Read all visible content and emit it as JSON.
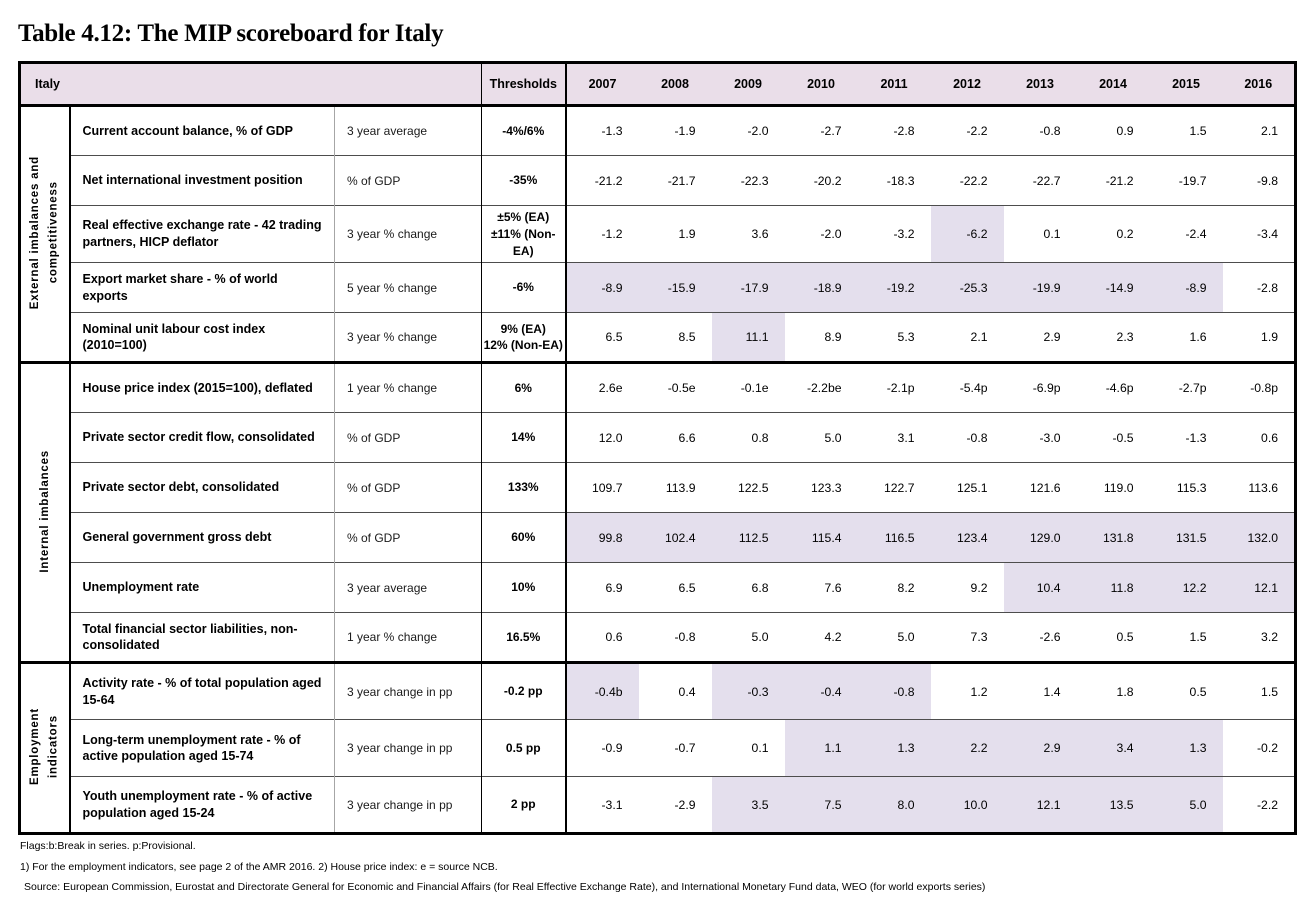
{
  "title": "Table 4.12: The MIP scoreboard for Italy",
  "colors": {
    "header_bg": "#EADEE9",
    "highlight_bg": "#E4DFED",
    "border": "#000000"
  },
  "header": {
    "country": "Italy",
    "thresholds_label": "Thresholds",
    "years": [
      "2007",
      "2008",
      "2009",
      "2010",
      "2011",
      "2012",
      "2013",
      "2014",
      "2015",
      "2016"
    ]
  },
  "groups": [
    {
      "label": "External imbalances and\ncompetitiveness",
      "rows": [
        {
          "indicator": "Current account balance, % of GDP",
          "unit": "3 year average",
          "threshold": "-4%/6%",
          "values": [
            "-1.3",
            "-1.9",
            "-2.0",
            "-2.7",
            "-2.8",
            "-2.2",
            "-0.8",
            "0.9",
            "1.5",
            "2.1"
          ],
          "highlighted_year_indices": []
        },
        {
          "indicator": "Net international investment position",
          "unit": "% of GDP",
          "threshold": "-35%",
          "values": [
            "-21.2",
            "-21.7",
            "-22.3",
            "-20.2",
            "-18.3",
            "-22.2",
            "-22.7",
            "-21.2",
            "-19.7",
            "-9.8"
          ],
          "highlighted_year_indices": []
        },
        {
          "indicator": "Real effective exchange rate - 42 trading partners, HICP deflator",
          "unit": "3 year % change",
          "threshold": "±5% (EA)\n±11% (Non-EA)",
          "values": [
            "-1.2",
            "1.9",
            "3.6",
            "-2.0",
            "-3.2",
            "-6.2",
            "0.1",
            "0.2",
            "-2.4",
            "-3.4"
          ],
          "highlighted_year_indices": [
            5
          ]
        },
        {
          "indicator": "Export market share - % of world exports",
          "unit": "5 year % change",
          "threshold": "-6%",
          "values": [
            "-8.9",
            "-15.9",
            "-17.9",
            "-18.9",
            "-19.2",
            "-25.3",
            "-19.9",
            "-14.9",
            "-8.9",
            "-2.8"
          ],
          "highlighted_year_indices": [
            0,
            1,
            2,
            3,
            4,
            5,
            6,
            7,
            8
          ]
        },
        {
          "indicator": "Nominal unit labour cost index (2010=100)",
          "unit": "3 year % change",
          "threshold": "9% (EA)\n12% (Non-EA)",
          "values": [
            "6.5",
            "8.5",
            "11.1",
            "8.9",
            "5.3",
            "2.1",
            "2.9",
            "2.3",
            "1.6",
            "1.9"
          ],
          "highlighted_year_indices": [
            2
          ]
        }
      ]
    },
    {
      "label": "Internal imbalances",
      "rows": [
        {
          "indicator": "House price index (2015=100), deflated",
          "unit": "1 year % change",
          "threshold": "6%",
          "values": [
            "2.6e",
            "-0.5e",
            "-0.1e",
            "-2.2be",
            "-2.1p",
            "-5.4p",
            "-6.9p",
            "-4.6p",
            "-2.7p",
            "-0.8p"
          ],
          "highlighted_year_indices": []
        },
        {
          "indicator": "Private sector credit flow, consolidated",
          "unit": "% of GDP",
          "threshold": "14%",
          "values": [
            "12.0",
            "6.6",
            "0.8",
            "5.0",
            "3.1",
            "-0.8",
            "-3.0",
            "-0.5",
            "-1.3",
            "0.6"
          ],
          "highlighted_year_indices": []
        },
        {
          "indicator": "Private sector debt, consolidated",
          "unit": "% of GDP",
          "threshold": "133%",
          "values": [
            "109.7",
            "113.9",
            "122.5",
            "123.3",
            "122.7",
            "125.1",
            "121.6",
            "119.0",
            "115.3",
            "113.6"
          ],
          "highlighted_year_indices": []
        },
        {
          "indicator": "General government gross debt",
          "unit": "% of GDP",
          "threshold": "60%",
          "values": [
            "99.8",
            "102.4",
            "112.5",
            "115.4",
            "116.5",
            "123.4",
            "129.0",
            "131.8",
            "131.5",
            "132.0"
          ],
          "highlighted_year_indices": [
            0,
            1,
            2,
            3,
            4,
            5,
            6,
            7,
            8,
            9
          ]
        },
        {
          "indicator": "Unemployment rate",
          "unit": "3 year average",
          "threshold": "10%",
          "values": [
            "6.9",
            "6.5",
            "6.8",
            "7.6",
            "8.2",
            "9.2",
            "10.4",
            "11.8",
            "12.2",
            "12.1"
          ],
          "highlighted_year_indices": [
            6,
            7,
            8,
            9
          ]
        },
        {
          "indicator": "Total financial sector liabilities, non-consolidated",
          "unit": "1 year % change",
          "threshold": "16.5%",
          "values": [
            "0.6",
            "-0.8",
            "5.0",
            "4.2",
            "5.0",
            "7.3",
            "-2.6",
            "0.5",
            "1.5",
            "3.2"
          ],
          "highlighted_year_indices": []
        }
      ]
    },
    {
      "label": "Employment\nindicators",
      "rows": [
        {
          "indicator": "Activity rate - % of total population aged 15-64",
          "unit": "3 year change in pp",
          "threshold": "-0.2 pp",
          "values": [
            "-0.4b",
            "0.4",
            "-0.3",
            "-0.4",
            "-0.8",
            "1.2",
            "1.4",
            "1.8",
            "0.5",
            "1.5"
          ],
          "highlighted_year_indices": [
            0,
            2,
            3,
            4
          ]
        },
        {
          "indicator": "Long-term unemployment rate - % of active population aged 15-74",
          "unit": "3 year change in pp",
          "threshold": "0.5 pp",
          "values": [
            "-0.9",
            "-0.7",
            "0.1",
            "1.1",
            "1.3",
            "2.2",
            "2.9",
            "3.4",
            "1.3",
            "-0.2"
          ],
          "highlighted_year_indices": [
            3,
            4,
            5,
            6,
            7,
            8
          ]
        },
        {
          "indicator": "Youth unemployment rate - % of active population aged 15-24",
          "unit": "3 year change in pp",
          "threshold": "2 pp",
          "values": [
            "-3.1",
            "-2.9",
            "3.5",
            "7.5",
            "8.0",
            "10.0",
            "12.1",
            "13.5",
            "5.0",
            "-2.2"
          ],
          "highlighted_year_indices": [
            2,
            3,
            4,
            5,
            6,
            7,
            8
          ]
        }
      ]
    }
  ],
  "notes": {
    "flags": "Flags:b:Break in series. p:Provisional.",
    "note1": "1) For the employment indicators, see page 2 of the AMR 2016. 2) House price index: e = source NCB.",
    "source": "Source: European Commission, Eurostat and Directorate General for Economic and Financial Affairs (for Real Effective Exchange Rate), and International Monetary Fund data, WEO (for world exports series)"
  }
}
